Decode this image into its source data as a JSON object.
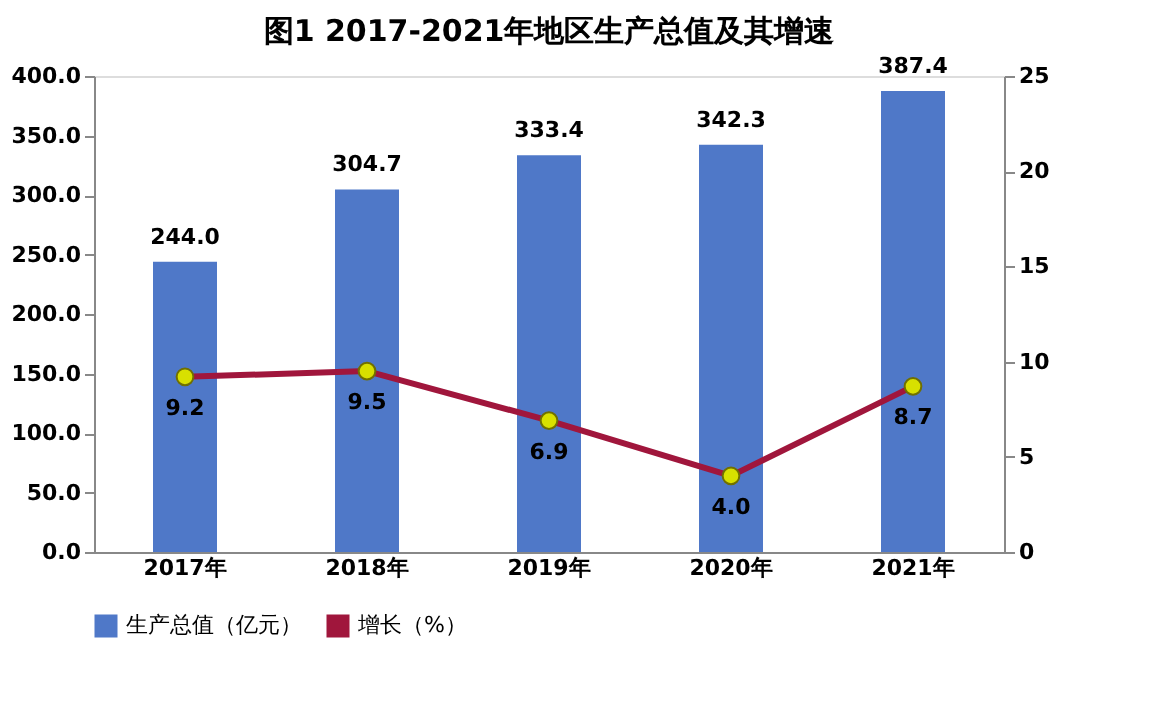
{
  "chart_data": {
    "type": "bar",
    "title": "图1  2017-2021年地区生产总值及其增速",
    "categories": [
      "2017年",
      "2018年",
      "2019年",
      "2020年",
      "2021年"
    ],
    "series": [
      {
        "name": "生产总值（亿元）",
        "color": "#4f78c8",
        "values": [
          244.0,
          304.7,
          333.4,
          342.3,
          387.4
        ],
        "value_labels": [
          "244.0",
          "304.7",
          "333.4",
          "342.3",
          "387.4"
        ]
      },
      {
        "name": "增长（%）",
        "type": "line",
        "axis": "y2",
        "color": "#a0163c",
        "values": [
          9.2,
          9.5,
          6.9,
          4.0,
          8.7
        ],
        "value_labels": [
          "9.2",
          "9.5",
          "6.9",
          "4.0",
          "8.7"
        ]
      }
    ],
    "ylim": [
      0,
      400
    ],
    "yticks": [
      {
        "value": 0,
        "label": "0.0"
      },
      {
        "value": 50,
        "label": "50.0"
      },
      {
        "value": 100,
        "label": "100.0"
      },
      {
        "value": 150,
        "label": "150.0"
      },
      {
        "value": 200,
        "label": "200.0"
      },
      {
        "value": 250,
        "label": "250.0"
      },
      {
        "value": 300,
        "label": "300.0"
      },
      {
        "value": 350,
        "label": "350.0"
      },
      {
        "value": 400,
        "label": "400.0"
      }
    ],
    "y2lim": [
      0,
      25
    ],
    "y2ticks": [
      0,
      5,
      10,
      15,
      20,
      25
    ],
    "marker": "circle",
    "line_style": "solid",
    "legend": "bottom",
    "grid": false
  }
}
